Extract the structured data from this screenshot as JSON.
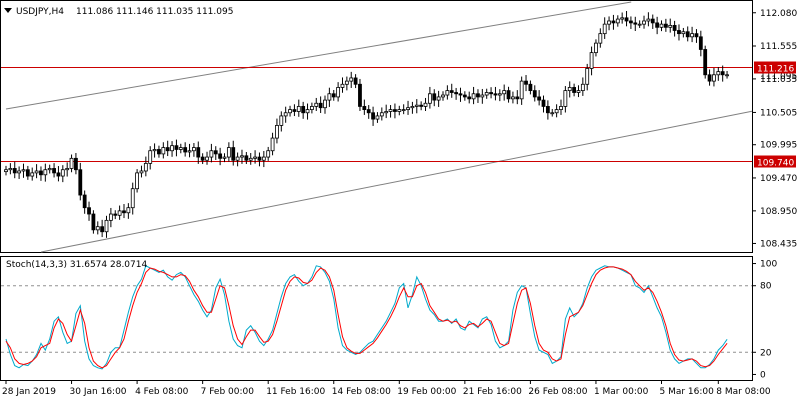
{
  "chart_data": [
    {
      "type": "candlestick",
      "symbol_label": "USDJPY,H4",
      "ohlc_label": "111.086 111.146 111.035 111.095",
      "ylim": [
        108.3,
        112.25
      ],
      "y_ticks": [
        "112.080",
        "111.555",
        "111.035",
        "110.505",
        "109.995",
        "109.470",
        "108.950",
        "108.435"
      ],
      "grid": false,
      "horizontal_lines": [
        {
          "value": 111.216,
          "label": "111.216",
          "color": "#cc0000"
        },
        {
          "value": 109.74,
          "label": "109.740",
          "color": "#cc0000"
        }
      ],
      "current_price": {
        "value": 111.095,
        "label": "111.095"
      },
      "channel": {
        "upper": [
          {
            "bar": 0,
            "price": 110.56
          },
          {
            "bar": 160,
            "price": 112.45
          }
        ],
        "lower": [
          {
            "bar": 0,
            "price": 108.19
          },
          {
            "bar": 180,
            "price": 110.65
          }
        ],
        "color": "#808080"
      },
      "closes": [
        109.6,
        109.62,
        109.55,
        109.58,
        109.6,
        109.5,
        109.55,
        109.58,
        109.52,
        109.6,
        109.62,
        109.55,
        109.5,
        109.6,
        109.62,
        109.78,
        109.6,
        109.2,
        109.0,
        108.9,
        108.65,
        108.7,
        108.62,
        108.8,
        108.9,
        108.88,
        108.95,
        108.92,
        109.0,
        109.3,
        109.55,
        109.58,
        109.7,
        109.9,
        109.92,
        109.85,
        109.95,
        109.9,
        109.98,
        109.92,
        109.95,
        109.88,
        109.9,
        109.95,
        109.8,
        109.75,
        109.8,
        109.9,
        109.85,
        109.78,
        109.8,
        109.95,
        109.75,
        109.8,
        109.82,
        109.75,
        109.78,
        109.8,
        109.75,
        109.8,
        109.9,
        110.1,
        110.3,
        110.45,
        110.5,
        110.55,
        110.52,
        110.6,
        110.5,
        110.55,
        110.6,
        110.65,
        110.58,
        110.7,
        110.8,
        110.75,
        110.9,
        110.95,
        111.0,
        111.05,
        110.95,
        110.6,
        110.55,
        110.5,
        110.4,
        110.45,
        110.5,
        110.52,
        110.55,
        110.52,
        110.55,
        110.55,
        110.58,
        110.6,
        110.62,
        110.6,
        110.65,
        110.8,
        110.7,
        110.75,
        110.78,
        110.85,
        110.82,
        110.8,
        110.78,
        110.75,
        110.72,
        110.8,
        110.75,
        110.78,
        110.82,
        110.8,
        110.78,
        110.8,
        110.85,
        110.72,
        110.75,
        110.72,
        111.0,
        110.95,
        110.85,
        110.75,
        110.7,
        110.6,
        110.5,
        110.5,
        110.55,
        110.6,
        110.85,
        110.9,
        110.82,
        110.85,
        110.95,
        111.2,
        111.45,
        111.6,
        111.75,
        111.9,
        111.95,
        111.92,
        111.98,
        112.0,
        111.95,
        111.92,
        111.9,
        111.9,
        111.95,
        111.98,
        111.92,
        111.85,
        111.9,
        111.85,
        111.88,
        111.8,
        111.75,
        111.78,
        111.7,
        111.75,
        111.7,
        111.5,
        111.1,
        111.0,
        111.1,
        111.15,
        111.1,
        111.1
      ],
      "x_ticks": [
        "28 Jan 2019",
        "30 Jan 16:00",
        "4 Feb 08:00",
        "7 Feb 00:00",
        "11 Feb 16:00",
        "14 Feb 08:00",
        "19 Feb 00:00",
        "21 Feb 16:00",
        "26 Feb 08:00",
        "1 Mar 00:00",
        "5 Mar 16:00",
        "8 Mar 08:00"
      ],
      "x_tick_bars": [
        0,
        15,
        30,
        45,
        60,
        75,
        90,
        105,
        120,
        135,
        150,
        163
      ]
    },
    {
      "type": "line",
      "indicator_label": "Stoch(14,3,3) 31.6574 28.0714",
      "ylim": [
        -5,
        105
      ],
      "y_ticks": [
        "100",
        "80",
        "20",
        "0"
      ],
      "levels": [
        80,
        20
      ],
      "series": [
        {
          "name": "main",
          "color": "#00aacc",
          "values": [
            32,
            18,
            8,
            6,
            9,
            8,
            12,
            18,
            28,
            22,
            32,
            48,
            52,
            38,
            28,
            30,
            55,
            62,
            30,
            14,
            8,
            6,
            5,
            10,
            20,
            24,
            24,
            40,
            56,
            70,
            80,
            86,
            98,
            96,
            94,
            92,
            94,
            88,
            85,
            90,
            92,
            88,
            80,
            72,
            66,
            58,
            52,
            58,
            78,
            86,
            72,
            48,
            32,
            26,
            24,
            40,
            44,
            38,
            30,
            26,
            32,
            40,
            55,
            70,
            82,
            88,
            90,
            84,
            80,
            82,
            88,
            98,
            97,
            92,
            84,
            68,
            42,
            26,
            22,
            20,
            18,
            20,
            24,
            28,
            30,
            36,
            42,
            48,
            56,
            64,
            78,
            82,
            60,
            72,
            88,
            80,
            68,
            58,
            54,
            48,
            48,
            50,
            46,
            50,
            42,
            40,
            48,
            45,
            42,
            50,
            52,
            45,
            30,
            24,
            26,
            30,
            58,
            74,
            80,
            78,
            55,
            34,
            22,
            20,
            18,
            10,
            12,
            16,
            50,
            60,
            52,
            56,
            64,
            78,
            88,
            94,
            96,
            98,
            97,
            97,
            96,
            94,
            92,
            90,
            80,
            78,
            74,
            80,
            70,
            60,
            52,
            38,
            22,
            14,
            10,
            12,
            14,
            14,
            10,
            6,
            6,
            9,
            14,
            22,
            26,
            31.6574
          ]
        },
        {
          "name": "signal",
          "color": "#ff0000",
          "values": [
            30,
            24,
            14,
            10,
            9,
            10,
            12,
            16,
            24,
            26,
            28,
            42,
            50,
            46,
            36,
            30,
            44,
            58,
            46,
            24,
            12,
            8,
            6,
            8,
            14,
            20,
            24,
            32,
            48,
            62,
            74,
            82,
            92,
            96,
            95,
            93,
            92,
            90,
            88,
            88,
            90,
            89,
            84,
            76,
            70,
            62,
            56,
            56,
            68,
            80,
            78,
            62,
            44,
            32,
            27,
            34,
            40,
            40,
            34,
            29,
            30,
            36,
            48,
            62,
            76,
            84,
            88,
            87,
            83,
            82,
            85,
            92,
            96,
            94,
            88,
            76,
            54,
            34,
            24,
            21,
            19,
            19,
            22,
            25,
            28,
            33,
            39,
            45,
            52,
            60,
            70,
            78,
            70,
            70,
            80,
            82,
            74,
            62,
            56,
            50,
            48,
            49,
            47,
            48,
            44,
            42,
            45,
            46,
            43,
            46,
            50,
            48,
            38,
            28,
            26,
            28,
            46,
            64,
            76,
            78,
            64,
            44,
            28,
            22,
            20,
            14,
            12,
            14,
            36,
            52,
            54,
            56,
            62,
            72,
            82,
            90,
            94,
            96,
            97,
            97,
            96,
            95,
            93,
            90,
            84,
            80,
            76,
            78,
            74,
            66,
            56,
            44,
            28,
            18,
            13,
            12,
            13,
            14,
            12,
            8,
            7,
            8,
            12,
            18,
            23,
            28.0714
          ]
        }
      ],
      "x_ticks": [
        "28 Jan 2019",
        "30 Jan 16:00",
        "4 Feb 08:00",
        "7 Feb 00:00",
        "11 Feb 16:00",
        "14 Feb 08:00",
        "19 Feb 00:00",
        "21 Feb 16:00",
        "26 Feb 08:00",
        "1 Mar 00:00",
        "5 Mar 16:00",
        "8 Mar 08:00"
      ]
    }
  ]
}
